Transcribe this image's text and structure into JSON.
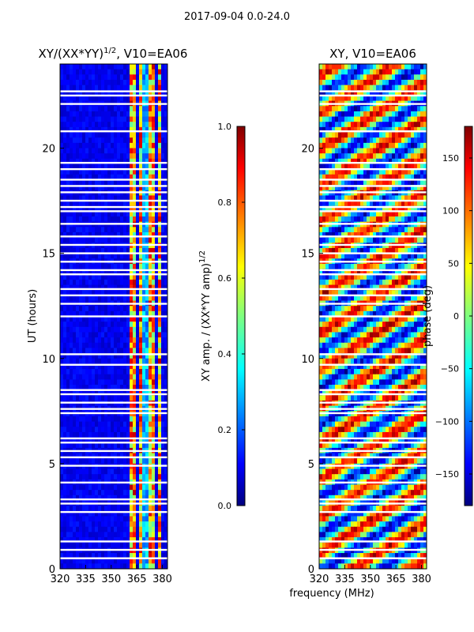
{
  "suptitle": "2017-09-04 0.0-24.0",
  "chart_data": [
    {
      "type": "heatmap",
      "title": "XY/(XX*YY)^{1/2}, V10=EA06",
      "title_main": "XY/(XX*YY)",
      "title_sup": "1/2",
      "title_tail": ", V10=EA06",
      "xlabel": "",
      "ylabel": "UT (hours)",
      "xlim": [
        320,
        383
      ],
      "ylim": [
        0,
        24
      ],
      "xticks": [
        320,
        335,
        350,
        365,
        380
      ],
      "yticks": [
        0,
        5,
        10,
        15,
        20
      ],
      "colorbar": {
        "label": "XY amp. / (XX*YY amp)^{1/2}",
        "label_main": "XY amp. / (XX*YY amp)",
        "label_sup": "1/2",
        "range": [
          0.0,
          1.0
        ],
        "ticks": [
          "0.0",
          "0.2",
          "0.4",
          "0.6",
          "0.8",
          "1.0"
        ],
        "tick_values": [
          0.0,
          0.2,
          0.4,
          0.6,
          0.8,
          1.0
        ]
      },
      "colormap": "jet",
      "bright_bands_mhz": [
        [
          361,
          364
        ],
        [
          366,
          369
        ],
        [
          372,
          375
        ],
        [
          377,
          379
        ]
      ]
    },
    {
      "type": "heatmap",
      "title": "XY, V10=EA06",
      "xlabel": "frequency (MHz)",
      "ylabel": "",
      "xlim": [
        320,
        383
      ],
      "ylim": [
        0,
        24
      ],
      "xticks": [
        320,
        335,
        350,
        365,
        380
      ],
      "yticks": [
        0,
        5,
        10,
        15,
        20
      ],
      "colorbar": {
        "label": "phase (deg)",
        "range": [
          -180,
          180
        ],
        "ticks": [
          "150",
          "100",
          "50",
          "0",
          "−50",
          "−100",
          "−150"
        ],
        "tick_values": [
          150,
          100,
          50,
          0,
          -50,
          -100,
          -150
        ]
      },
      "colormap": "jet"
    }
  ],
  "gaps_ut_hours": [
    0.5,
    0.9,
    1.3,
    2.7,
    3.1,
    3.3,
    4.1,
    4.9,
    5.3,
    5.6,
    6.0,
    6.2,
    7.4,
    7.6,
    7.9,
    8.3,
    8.5,
    9.7,
    10.2,
    12.0,
    12.6,
    13.0,
    13.3,
    14.0,
    14.2,
    14.6,
    15.0,
    15.4,
    15.8,
    16.4,
    17.0,
    17.2,
    17.5,
    17.9,
    18.2,
    18.5,
    19.0,
    19.3,
    20.8,
    22.1,
    22.5,
    22.7
  ]
}
